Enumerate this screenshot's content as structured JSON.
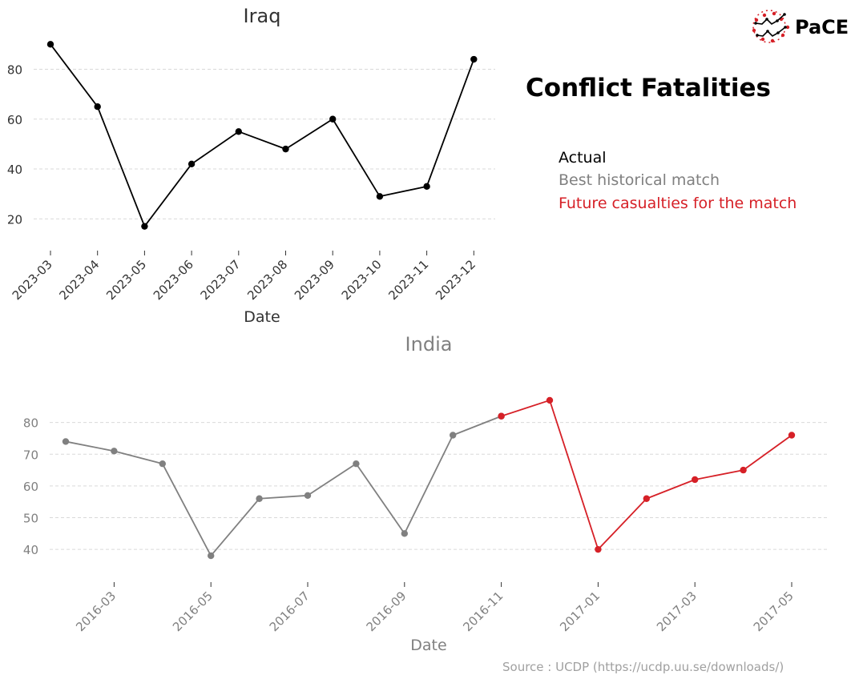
{
  "header": {
    "title": "Conflict Fatalities",
    "logo_text": "PaCE",
    "source": "Source : UCDP (https://ucdp.uu.se/downloads/)"
  },
  "legend": {
    "placement": "right",
    "items": [
      {
        "label": "Actual",
        "color": "#000000"
      },
      {
        "label": "Best historical match",
        "color": "#808080"
      },
      {
        "label": "Future casualties for the match",
        "color": "#d62027"
      }
    ]
  },
  "colors": {
    "actual": "#000000",
    "match": "#808080",
    "future": "#d62027",
    "grid": "#d9d9d9"
  },
  "chart_data": [
    {
      "type": "line",
      "title": "Iraq",
      "xlabel": "Date",
      "ylabel": "",
      "grid": "horizontal dashed",
      "ylim": [
        14,
        93
      ],
      "yticks": [
        20,
        40,
        60,
        80
      ],
      "x": [
        "2023-03",
        "2023-04",
        "2023-05",
        "2023-06",
        "2023-07",
        "2023-08",
        "2023-09",
        "2023-10",
        "2023-11",
        "2023-12"
      ],
      "xticks": [
        "2023-03",
        "2023-04",
        "2023-05",
        "2023-06",
        "2023-07",
        "2023-08",
        "2023-09",
        "2023-10",
        "2023-11",
        "2023-12"
      ],
      "series": [
        {
          "name": "Actual",
          "color": "#000000",
          "values": [
            90,
            65,
            17,
            42,
            55,
            48,
            60,
            29,
            33,
            84
          ]
        }
      ]
    },
    {
      "type": "line",
      "title": "India",
      "xlabel": "Date",
      "ylabel": "",
      "grid": "horizontal dashed",
      "ylim": [
        36,
        89
      ],
      "yticks": [
        40,
        50,
        60,
        70,
        80
      ],
      "xticks": [
        "2016-03",
        "2016-05",
        "2016-07",
        "2016-09",
        "2016-11",
        "2017-01",
        "2017-03",
        "2017-05"
      ],
      "series": [
        {
          "name": "Best historical match",
          "color": "#808080",
          "x": [
            "2016-02",
            "2016-03",
            "2016-04",
            "2016-05",
            "2016-06",
            "2016-07",
            "2016-08",
            "2016-09",
            "2016-10",
            "2016-11"
          ],
          "values": [
            74,
            71,
            67,
            38,
            56,
            57,
            67,
            45,
            76,
            82
          ]
        },
        {
          "name": "Future casualties for the match",
          "color": "#d62027",
          "x": [
            "2016-11",
            "2016-12",
            "2017-01",
            "2017-02",
            "2017-03",
            "2017-04",
            "2017-05"
          ],
          "values": [
            82,
            87,
            40,
            56,
            62,
            65,
            76
          ]
        }
      ]
    }
  ]
}
